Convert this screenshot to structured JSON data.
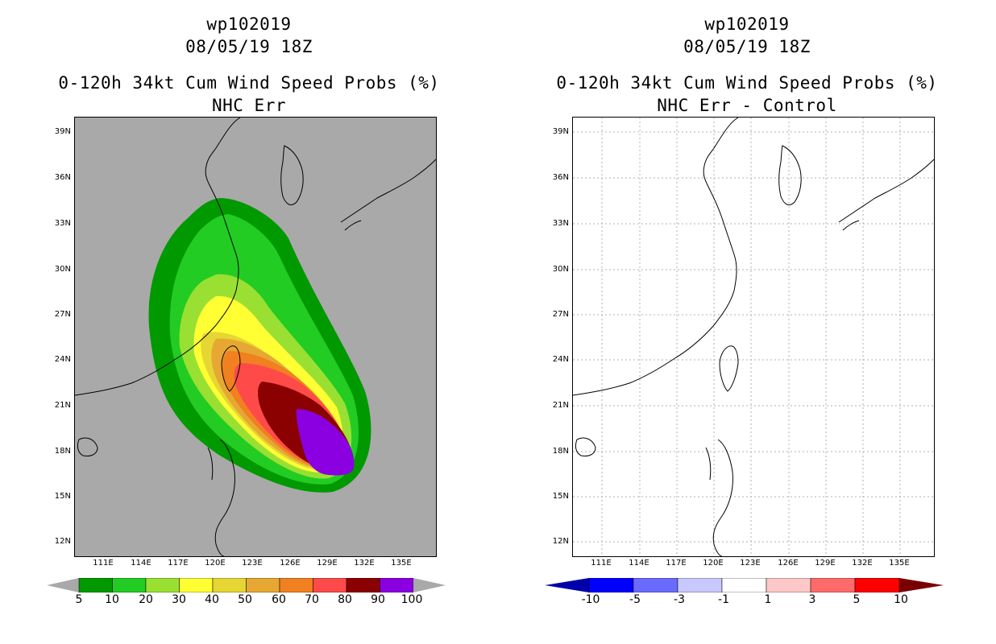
{
  "left_panel": {
    "title_id": "wp102019",
    "title_date": "08/05/19 18Z",
    "title_product": "0-120h 34kt Cum Wind Speed Probs (%)",
    "title_sub": "NHC Err",
    "colorbar_labels": [
      "5",
      "10",
      "20",
      "30",
      "40",
      "50",
      "60",
      "70",
      "80",
      "90",
      "100"
    ],
    "colorbar_colors": [
      "#009900",
      "#22cc22",
      "#99e033",
      "#ffff33",
      "#e6d633",
      "#e6a833",
      "#f08020",
      "#ff4a4a",
      "#8b0000",
      "#8a00e0"
    ]
  },
  "right_panel": {
    "title_id": "wp102019",
    "title_date": "08/05/19 18Z",
    "title_product": "0-120h 34kt Cum Wind Speed Probs (%)",
    "title_sub": "NHC Err - Control",
    "colorbar_labels": [
      "-10",
      "-5",
      "-3",
      "-1",
      "1",
      "3",
      "5",
      "10"
    ],
    "colorbar_colors": [
      "#0000aa",
      "#0000ff",
      "#6a6aff",
      "#c8c8ff",
      "#ffffff",
      "#ffc8c8",
      "#ff6a6a",
      "#ff0000",
      "#7a0000"
    ]
  },
  "axes": {
    "lat_labels": [
      "39N",
      "36N",
      "33N",
      "30N",
      "27N",
      "24N",
      "21N",
      "18N",
      "15N",
      "12N"
    ],
    "lon_labels": [
      "111E",
      "114E",
      "117E",
      "120E",
      "123E",
      "126E",
      "129E",
      "132E",
      "135E"
    ]
  },
  "colors": {
    "land_outline": "#000000",
    "background_left": "#a9a9a9",
    "grid": "#b0b0b0"
  }
}
